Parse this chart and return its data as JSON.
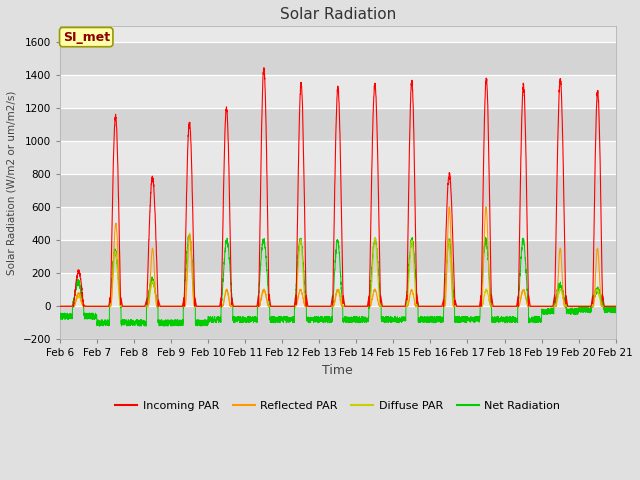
{
  "title": "Solar Radiation",
  "ylabel": "Solar Radiation (W/m2 or um/m2/s)",
  "xlabel": "Time",
  "ylim": [
    -200,
    1700
  ],
  "yticks": [
    -200,
    0,
    200,
    400,
    600,
    800,
    1000,
    1200,
    1400,
    1600
  ],
  "x_tick_labels": [
    "Feb 6",
    "Feb 7",
    "Feb 8",
    "Feb 9",
    "Feb 10",
    "Feb 11",
    "Feb 12",
    "Feb 13",
    "Feb 14",
    "Feb 15",
    "Feb 16",
    "Feb 17",
    "Feb 18",
    "Feb 19",
    "Feb 20",
    "Feb 21"
  ],
  "station_label": "SI_met",
  "fig_bg_color": "#e0e0e0",
  "plot_bg_color": "#e8e8e8",
  "plot_bg_color2": "#d4d4d4",
  "colors": {
    "incoming": "#ff0000",
    "reflected": "#ff9900",
    "diffuse": "#cccc00",
    "net": "#00cc00"
  },
  "legend": [
    "Incoming PAR",
    "Reflected PAR",
    "Diffuse PAR",
    "Net Radiation"
  ],
  "n_days": 15,
  "pts_per_day": 288,
  "day_peaks_incoming": [
    210,
    1150,
    780,
    1110,
    1200,
    1440,
    1350,
    1320,
    1340,
    1360,
    800,
    1380,
    1340,
    1370,
    1300
  ],
  "day_peaks_reflected": [
    80,
    500,
    350,
    430,
    100,
    100,
    100,
    100,
    100,
    100,
    600,
    600,
    100,
    350,
    350
  ],
  "day_peaks_diffuse": [
    60,
    330,
    150,
    440,
    100,
    100,
    400,
    100,
    410,
    400,
    400,
    100,
    100,
    100,
    100
  ],
  "day_peaks_net": [
    150,
    330,
    160,
    430,
    400,
    400,
    400,
    400,
    400,
    400,
    400,
    400,
    400,
    130,
    100
  ],
  "night_neg_net": [
    -60,
    -100,
    -100,
    -100,
    -80,
    -80,
    -80,
    -80,
    -80,
    -80,
    -80,
    -80,
    -80,
    -30,
    -20
  ]
}
